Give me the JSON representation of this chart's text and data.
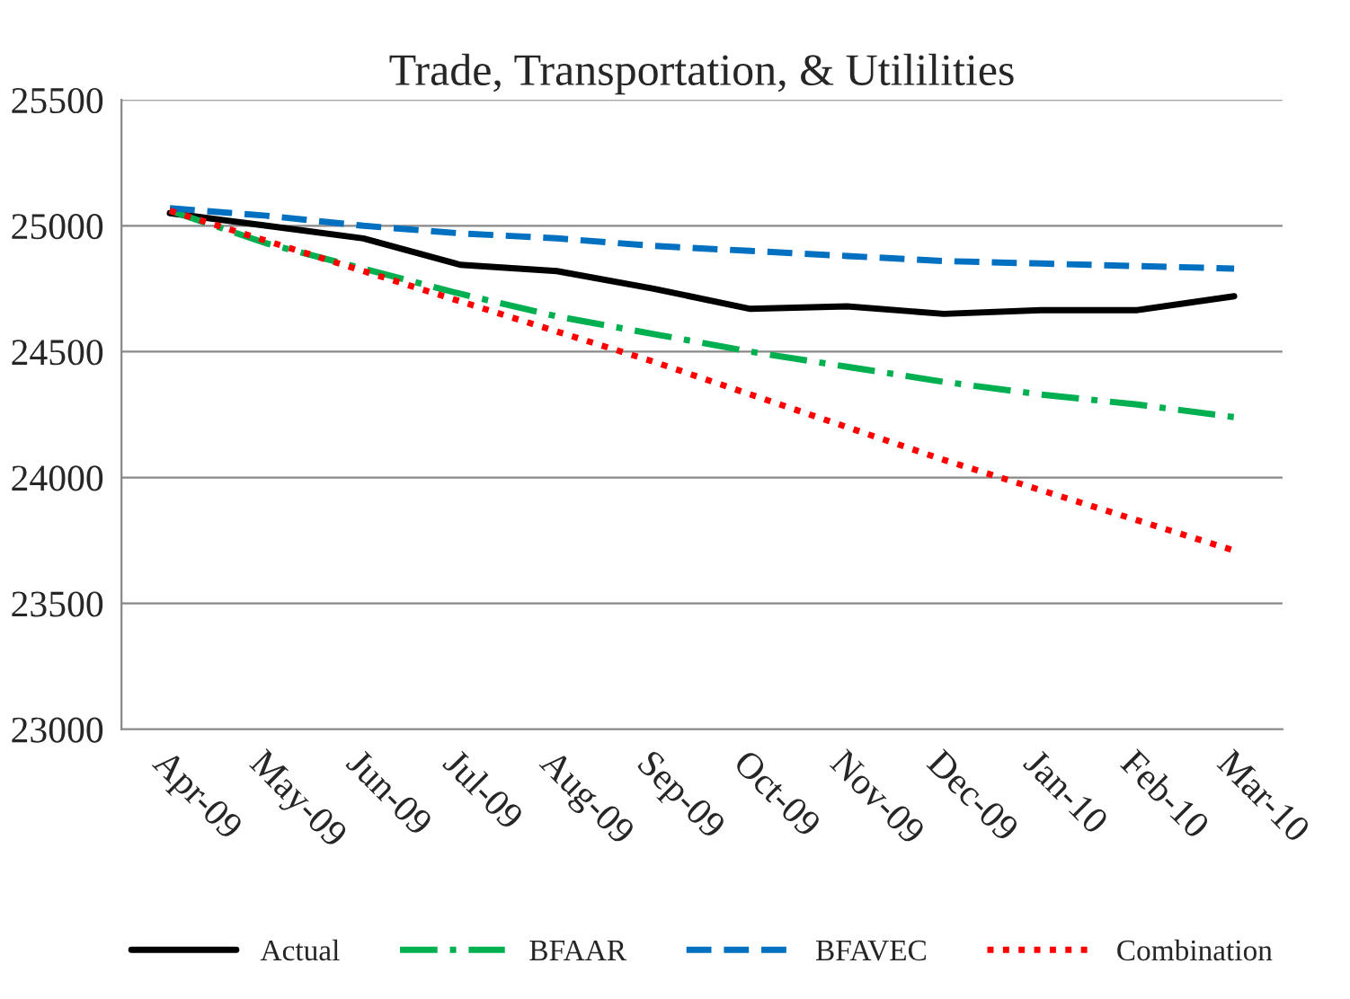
{
  "chart_data": {
    "type": "line",
    "title": "Trade, Transportation, & Utililities",
    "categories": [
      "Apr-09",
      "May-09",
      "Jun-09",
      "Jul-09",
      "Aug-09",
      "Sep-09",
      "Oct-09",
      "Nov-09",
      "Dec-09",
      "Jan-10",
      "Feb-10",
      "Mar-10"
    ],
    "series": [
      {
        "name": "Actual",
        "color": "#000000",
        "line_style": "solid",
        "values": [
          25050,
          25000,
          24950,
          24845,
          24820,
          24750,
          24670,
          24680,
          24650,
          24665,
          24665,
          24720
        ]
      },
      {
        "name": "BFAAR",
        "color": "#00b050",
        "line_style": "dashdot",
        "values": [
          25060,
          24930,
          24830,
          24730,
          24640,
          24570,
          24500,
          24440,
          24380,
          24330,
          24290,
          24240
        ]
      },
      {
        "name": "BFAVEC",
        "color": "#0070c0",
        "line_style": "dashed",
        "values": [
          25070,
          25040,
          25000,
          24970,
          24950,
          24920,
          24900,
          24880,
          24860,
          24850,
          24840,
          24830
        ]
      },
      {
        "name": "Combination",
        "color": "#ff0000",
        "line_style": "dotted",
        "values": [
          25060,
          24940,
          24820,
          24700,
          24580,
          24460,
          24330,
          24200,
          24070,
          23950,
          23830,
          23710
        ]
      }
    ],
    "ylim": [
      23000,
      25500
    ],
    "yticks": [
      23000,
      23500,
      24000,
      24500,
      25000,
      25500
    ],
    "grid": "y",
    "legend": "bottom",
    "marker": "none"
  }
}
